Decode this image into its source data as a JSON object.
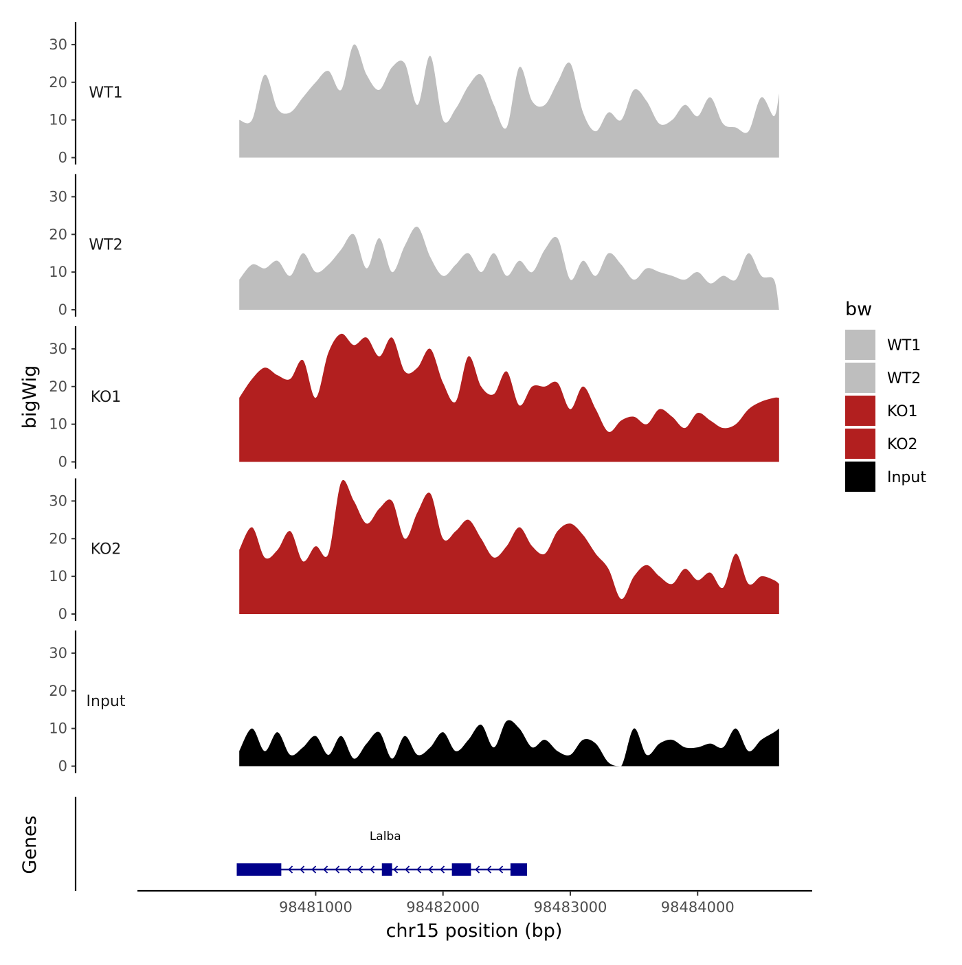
{
  "chart_data": {
    "type": "area",
    "title": "",
    "xlabel": "chr15 position (bp)",
    "ylabel": "bigWig",
    "gene_panel_label": "Genes",
    "xlim": [
      98479600,
      98484900
    ],
    "x_ticks": [
      98481000,
      98482000,
      98483000,
      98484000
    ],
    "x_tick_labels": [
      "98481000",
      "98482000",
      "98483000",
      "98484000"
    ],
    "ylim": [
      0,
      36
    ],
    "y_ticks": [
      0,
      10,
      20,
      30
    ],
    "y_tick_labels": [
      "0",
      "10",
      "20",
      "30"
    ],
    "legend_title": "bw",
    "legend": [
      {
        "name": "WT1",
        "color": "#bebebe"
      },
      {
        "name": "WT2",
        "color": "#bebebe"
      },
      {
        "name": "KO1",
        "color": "#b21f1f"
      },
      {
        "name": "KO2",
        "color": "#b21f1f"
      },
      {
        "name": "Input",
        "color": "#000000"
      }
    ],
    "x": [
      98480400,
      98480500,
      98480600,
      98480700,
      98480800,
      98480900,
      98481000,
      98481100,
      98481200,
      98481300,
      98481400,
      98481500,
      98481600,
      98481700,
      98481800,
      98481900,
      98482000,
      98482100,
      98482200,
      98482300,
      98482400,
      98482500,
      98482600,
      98482700,
      98482800,
      98482900,
      98483000,
      98483100,
      98483200,
      98483300,
      98483400,
      98483500,
      98483600,
      98483700,
      98483800,
      98483900,
      98484000,
      98484100,
      98484200,
      98484300,
      98484400,
      98484500,
      98484600,
      98484640
    ],
    "series": [
      {
        "name": "WT1",
        "color": "#bebebe",
        "values": [
          10,
          10,
          22,
          13,
          12,
          16,
          20,
          23,
          18,
          30,
          22,
          18,
          24,
          25,
          14,
          27,
          10,
          13,
          19,
          22,
          14,
          8,
          24,
          15,
          14,
          20,
          25,
          12,
          7,
          12,
          10,
          18,
          15,
          9,
          10,
          14,
          11,
          16,
          9,
          8,
          7,
          16,
          11,
          17
        ]
      },
      {
        "name": "WT2",
        "color": "#bebebe",
        "values": [
          8,
          12,
          11,
          13,
          9,
          15,
          10,
          12,
          16,
          20,
          11,
          19,
          10,
          17,
          22,
          14,
          9,
          12,
          15,
          10,
          15,
          9,
          13,
          10,
          16,
          19,
          8,
          13,
          9,
          15,
          12,
          8,
          11,
          10,
          9,
          8,
          10,
          7,
          9,
          8,
          15,
          9,
          8,
          0
        ]
      },
      {
        "name": "KO1",
        "color": "#b21f1f",
        "values": [
          17,
          22,
          25,
          23,
          22,
          27,
          17,
          29,
          34,
          31,
          33,
          28,
          33,
          24,
          25,
          30,
          21,
          16,
          28,
          20,
          18,
          24,
          15,
          20,
          20,
          21,
          14,
          20,
          14,
          8,
          11,
          12,
          10,
          14,
          12,
          9,
          13,
          11,
          9,
          10,
          14,
          16,
          17,
          17
        ]
      },
      {
        "name": "KO2",
        "color": "#b21f1f",
        "values": [
          17,
          23,
          15,
          17,
          22,
          14,
          18,
          16,
          35,
          30,
          24,
          28,
          30,
          20,
          27,
          32,
          20,
          22,
          25,
          20,
          15,
          18,
          23,
          18,
          16,
          22,
          24,
          21,
          16,
          12,
          4,
          10,
          13,
          10,
          8,
          12,
          9,
          11,
          7,
          16,
          8,
          10,
          9,
          8
        ]
      },
      {
        "name": "Input",
        "color": "#000000",
        "values": [
          4,
          10,
          4,
          9,
          3,
          5,
          8,
          3,
          8,
          2,
          6,
          9,
          2,
          8,
          3,
          5,
          9,
          4,
          7,
          11,
          5,
          12,
          10,
          5,
          7,
          4,
          3,
          7,
          6,
          1,
          0,
          10,
          3,
          6,
          7,
          5,
          5,
          6,
          5,
          10,
          4,
          7,
          9,
          10
        ]
      }
    ],
    "genes": [
      {
        "name": "Lalba",
        "strand": "-",
        "start": 98480380,
        "end": 98482660,
        "exons": [
          [
            98480380,
            98480730
          ],
          [
            98481520,
            98481600
          ],
          [
            98482070,
            98482220
          ],
          [
            98482530,
            98482660
          ]
        ]
      }
    ]
  }
}
